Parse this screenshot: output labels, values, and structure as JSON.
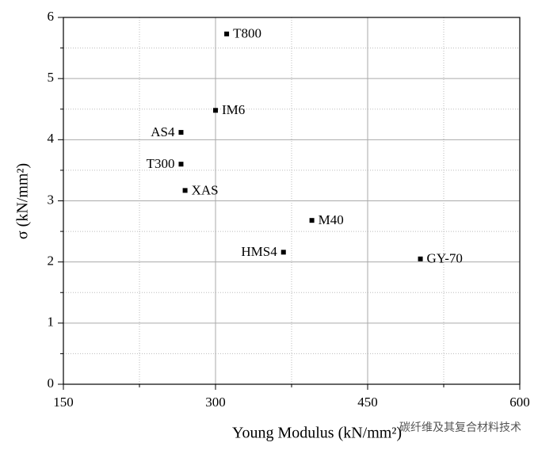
{
  "chart_data": {
    "type": "scatter",
    "x_label": "Young Modulus (kN/mm²)",
    "y_label": "σ (kN/mm²)",
    "labels": [
      "T800",
      "IM6",
      "AS4",
      "T300",
      "XAS",
      "M40",
      "HMS4",
      "GY-70"
    ],
    "x": [
      311,
      300,
      266,
      266,
      270,
      395,
      367,
      502
    ],
    "values": [
      5.73,
      4.48,
      4.12,
      3.6,
      3.17,
      2.68,
      2.16,
      2.05
    ],
    "color": "#000000",
    "xlim": [
      150,
      600
    ],
    "xticks": [
      150,
      300,
      450,
      600
    ],
    "ylim": [
      0,
      6
    ],
    "yticks": [
      0,
      1,
      2,
      3,
      4,
      5,
      6
    ],
    "grid": true,
    "watermark": "碳纤维及其复合材料技术"
  }
}
